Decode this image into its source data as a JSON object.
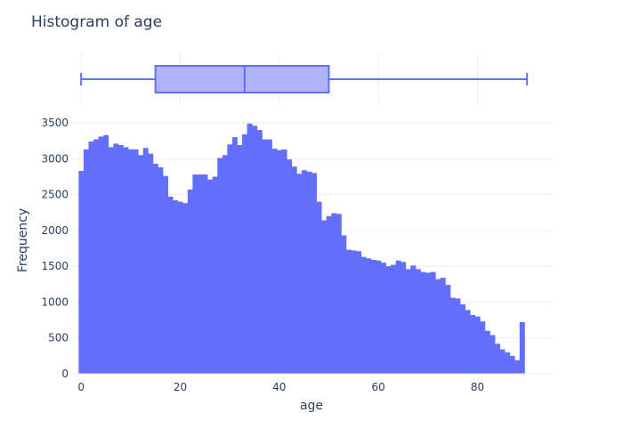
{
  "chart_data": {
    "type": "bar",
    "title": "Histogram of age",
    "xlabel": "age",
    "ylabel": "Frequency",
    "xlim": [
      -2,
      95
    ],
    "ylim": [
      0,
      3600
    ],
    "x_ticks": [
      0,
      20,
      40,
      60,
      80
    ],
    "y_ticks": [
      0,
      500,
      1000,
      1500,
      2000,
      2500,
      3000,
      3500
    ],
    "x_tick_labels": [
      "0",
      "20",
      "40",
      "60",
      "80"
    ],
    "y_tick_labels": [
      "0",
      "500",
      "1000",
      "1500",
      "2000",
      "2500",
      "3000",
      "3500"
    ],
    "grid": true,
    "bin_start": -0.5,
    "bin_width": 1,
    "values": [
      2830,
      3130,
      3240,
      3270,
      3310,
      3330,
      3160,
      3210,
      3190,
      3160,
      3130,
      3130,
      3050,
      3150,
      3070,
      2930,
      2880,
      2760,
      2470,
      2420,
      2400,
      2380,
      2570,
      2780,
      2780,
      2780,
      2710,
      2750,
      3010,
      3050,
      3200,
      3300,
      3190,
      3340,
      3490,
      3460,
      3400,
      3270,
      3270,
      3140,
      3120,
      3130,
      2990,
      2890,
      2790,
      2840,
      2820,
      2800,
      2400,
      2140,
      2200,
      2240,
      2230,
      1930,
      1730,
      1720,
      1710,
      1630,
      1610,
      1590,
      1580,
      1550,
      1500,
      1520,
      1580,
      1560,
      1460,
      1510,
      1460,
      1420,
      1410,
      1420,
      1320,
      1340,
      1240,
      1060,
      1050,
      970,
      890,
      820,
      800,
      730,
      600,
      540,
      420,
      340,
      300,
      250,
      190,
      720
    ],
    "box": {
      "min": 0,
      "q1": 15,
      "median": 33,
      "q3": 50,
      "max": 90
    },
    "colors": {
      "bar": "#636efa",
      "box_fill": "#b0b4fc",
      "box_line": "#636efa"
    }
  }
}
